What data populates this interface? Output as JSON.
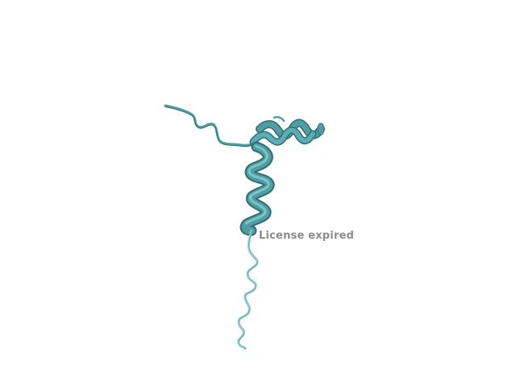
{
  "viewer": {
    "background_color": "#ffffff",
    "watermark_text": "License expired",
    "watermark_color": "#8c8c8c"
  },
  "molecule": {
    "representation": "cartoon",
    "color": "#4f9ea3",
    "shade_color": "#2f6e72",
    "tail_color": "#8fcfd2"
  }
}
